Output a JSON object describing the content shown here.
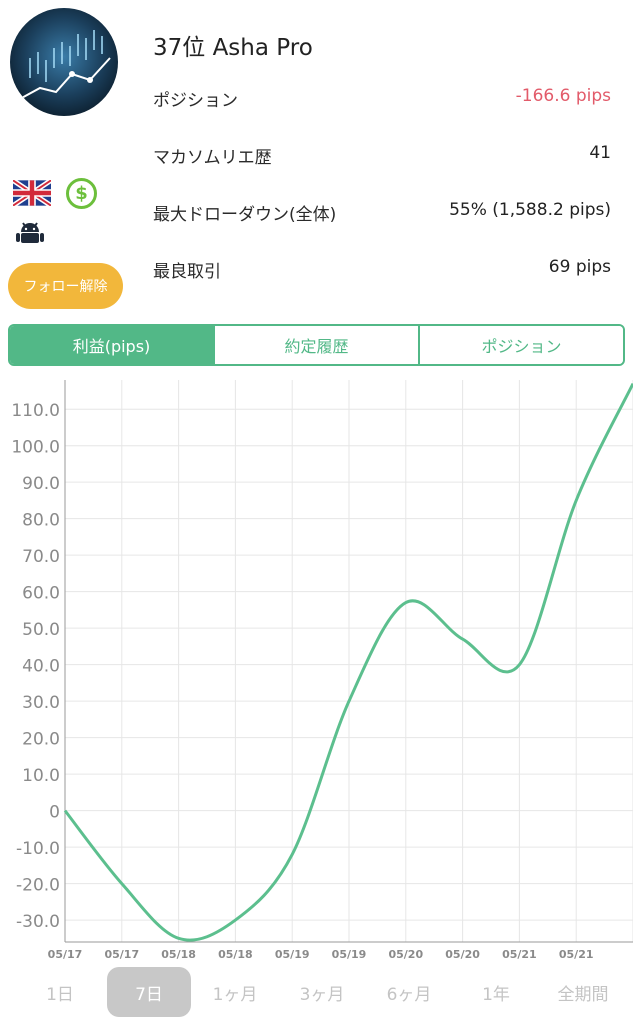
{
  "profile": {
    "rank_name": "37位 Asha Pro",
    "follow_button": "フォロー解除"
  },
  "stats": [
    {
      "label": "ポジション",
      "value": "-166.6 pips",
      "negative": true
    },
    {
      "label": "マカソムリエ歴",
      "value": "41",
      "negative": false
    },
    {
      "label": "最大ドローダウン(全体)",
      "value": "55% (1,588.2 pips)",
      "negative": false
    },
    {
      "label": "最良取引",
      "value": "69 pips",
      "negative": false
    }
  ],
  "tabs": [
    {
      "label": "利益(pips)",
      "active": true
    },
    {
      "label": "約定履歴",
      "active": false
    },
    {
      "label": "ポジション",
      "active": false
    }
  ],
  "colors": {
    "accent": "#52b887",
    "negative": "#e25b6a",
    "follow": "#f2b73b",
    "line": "#5cbf8e"
  },
  "chart_data": {
    "type": "line",
    "title": "",
    "xlabel": "",
    "ylabel": "",
    "ylim": [
      -36,
      118
    ],
    "y_ticks": [
      "110.0",
      "100.0",
      "90.0",
      "80.0",
      "70.0",
      "60.0",
      "50.0",
      "40.0",
      "30.0",
      "20.0",
      "10.0",
      "0",
      "-10.0",
      "-20.0",
      "-30.0"
    ],
    "x_ticks": [
      "05/17",
      "05/17",
      "05/18",
      "05/18",
      "05/19",
      "05/19",
      "05/20",
      "05/20",
      "05/21",
      "05/21"
    ],
    "series": [
      {
        "x_index": [
          0,
          1,
          2,
          3,
          4,
          5,
          6,
          7,
          8,
          9,
          10
        ],
        "values": [
          0,
          -20,
          -35,
          -30,
          -12,
          30,
          57,
          47,
          40,
          85,
          117
        ]
      }
    ]
  },
  "periods": [
    {
      "label": "1日",
      "active": false
    },
    {
      "label": "7日",
      "active": true
    },
    {
      "label": "1ヶ月",
      "active": false
    },
    {
      "label": "3ヶ月",
      "active": false
    },
    {
      "label": "6ヶ月",
      "active": false
    },
    {
      "label": "1年",
      "active": false
    },
    {
      "label": "全期間",
      "active": false
    }
  ]
}
